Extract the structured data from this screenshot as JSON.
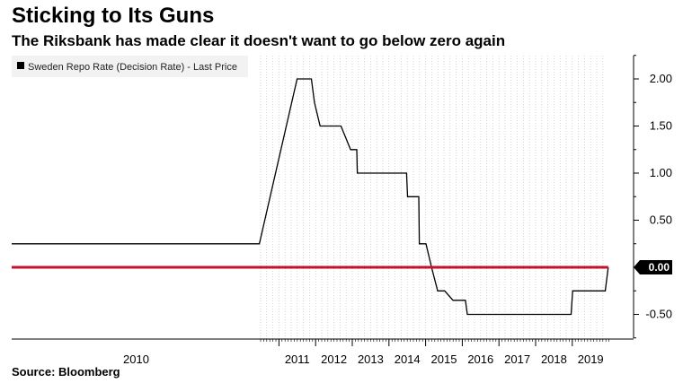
{
  "title": "Sticking to Its Guns",
  "subtitle": "The Riksbank has made clear it doesn't want to go below zero again",
  "source": "Source: Bloomberg",
  "chart_data": {
    "type": "line",
    "series": [
      {
        "name": "Sweden Repo Rate (Decision Rate) - Last Price",
        "color": "#000000",
        "points": [
          [
            "1994-01-01",
            0.25
          ],
          [
            "2010-06-01",
            0.25
          ],
          [
            "2011-07-01",
            2.0
          ],
          [
            "2011-11-20",
            2.0
          ],
          [
            "2011-12-20",
            1.75
          ],
          [
            "2012-02-15",
            1.5
          ],
          [
            "2012-09-10",
            1.5
          ],
          [
            "2012-12-15",
            1.25
          ],
          [
            "2013-02-15",
            1.25
          ],
          [
            "2013-02-20",
            1.0
          ],
          [
            "2014-06-25",
            1.0
          ],
          [
            "2014-07-05",
            0.75
          ],
          [
            "2014-10-25",
            0.75
          ],
          [
            "2014-10-30",
            0.25
          ],
          [
            "2015-01-05",
            0.25
          ],
          [
            "2015-03-01",
            0.0
          ],
          [
            "2015-05-01",
            -0.25
          ],
          [
            "2015-07-10",
            -0.25
          ],
          [
            "2015-10-01",
            -0.35
          ],
          [
            "2016-02-01",
            -0.35
          ],
          [
            "2016-02-20",
            -0.5
          ],
          [
            "2018-12-20",
            -0.5
          ],
          [
            "2019-01-05",
            -0.25
          ],
          [
            "2019-11-25",
            -0.25
          ],
          [
            "2019-12-25",
            0.0
          ]
        ]
      },
      {
        "name": "Zero line",
        "color": "#c8102e",
        "points": [
          [
            "1994-01-01",
            0.0
          ],
          [
            "2019-12-25",
            0.0
          ]
        ]
      }
    ],
    "xlabel": "",
    "ylabel": "",
    "ylim": [
      -0.75,
      2.3
    ],
    "yticks": [
      2.0,
      1.5,
      1.0,
      0.5,
      0.0,
      -0.5
    ],
    "ytick_labels": [
      "2.00",
      "1.50",
      "1.00",
      "0.50",
      "0.00",
      "-0.50"
    ],
    "xticks": [
      "2010",
      "2011",
      "2012",
      "2013",
      "2014",
      "2015",
      "2016",
      "2017",
      "2018",
      "2019"
    ],
    "last_value_label": "0.00",
    "legend_position": "top-left",
    "grid": "vertical-dotted",
    "axis_side": "right",
    "colors": {
      "line": "#000000",
      "zero_line": "#c8102e",
      "badge_bg": "#000000",
      "grid": "#bbbbbb"
    }
  }
}
